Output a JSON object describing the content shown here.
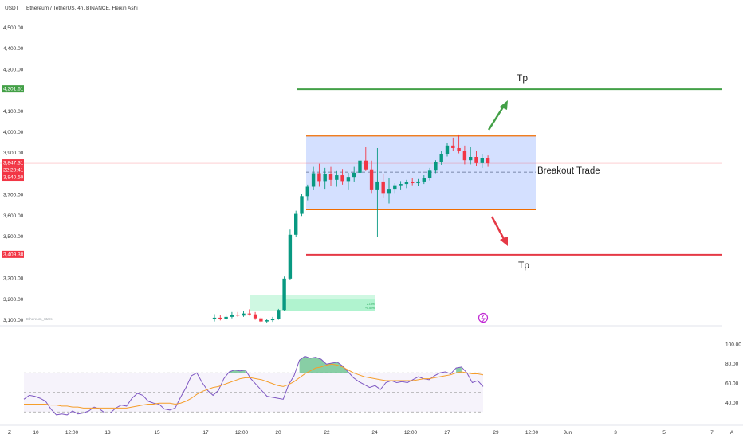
{
  "header": {
    "currency": "USDT",
    "title": "Ethereum / TetherUS, 4h, BINANCE, Heikin Ashi"
  },
  "watermark": "Ethereum_Stars",
  "annotations": {
    "breakout_label": "Breakout Trade",
    "tp_upper": "Tp",
    "tp_lower": "Tp",
    "box_note_line1": "2.15%",
    "box_note_line2": "+0.50%"
  },
  "price_tags": {
    "upper_target": "4,201.61",
    "current_price": "3,847.31",
    "countdown": "22:28:41",
    "prev_price": "3,840.50",
    "lower_target": "3,409.38"
  },
  "x_ticks": [
    "Z",
    "10",
    "12:00",
    "13",
    "15",
    "17",
    "12:00",
    "20",
    "22",
    "24",
    "12:00",
    "27",
    "29",
    "12:00",
    "Jun",
    "3",
    "5",
    "7",
    "A"
  ],
  "chart_data": [
    {
      "type": "candlestick",
      "title": "Ethereum / TetherUS, 4h, BINANCE, Heikin Ashi",
      "y_ticks": [
        "4,500.00",
        "4,400.00",
        "4,300.00",
        "4,100.00",
        "4,000.00",
        "3,900.00",
        "3,700.00",
        "3,600.00",
        "3,500.00",
        "3,300.00",
        "3,200.00",
        "3,100.00"
      ],
      "ylim": [
        3080,
        4560
      ],
      "candles": [
        {
          "o": 3100,
          "h": 3125,
          "l": 3090,
          "c": 3108
        },
        {
          "o": 3108,
          "h": 3120,
          "l": 3095,
          "c": 3100
        },
        {
          "o": 3100,
          "h": 3125,
          "l": 3095,
          "c": 3112
        },
        {
          "o": 3112,
          "h": 3135,
          "l": 3105,
          "c": 3122
        },
        {
          "o": 3122,
          "h": 3135,
          "l": 3112,
          "c": 3118
        },
        {
          "o": 3118,
          "h": 3140,
          "l": 3112,
          "c": 3128
        },
        {
          "o": 3128,
          "h": 3148,
          "l": 3118,
          "c": 3124
        },
        {
          "o": 3124,
          "h": 3135,
          "l": 3098,
          "c": 3105
        },
        {
          "o": 3105,
          "h": 3112,
          "l": 3085,
          "c": 3090
        },
        {
          "o": 3090,
          "h": 3102,
          "l": 3082,
          "c": 3096
        },
        {
          "o": 3096,
          "h": 3112,
          "l": 3088,
          "c": 3102
        },
        {
          "o": 3102,
          "h": 3150,
          "l": 3098,
          "c": 3145
        },
        {
          "o": 3145,
          "h": 3305,
          "l": 3140,
          "c": 3295
        },
        {
          "o": 3295,
          "h": 3530,
          "l": 3290,
          "c": 3505
        },
        {
          "o": 3505,
          "h": 3620,
          "l": 3495,
          "c": 3605
        },
        {
          "o": 3605,
          "h": 3700,
          "l": 3595,
          "c": 3690
        },
        {
          "o": 3690,
          "h": 3745,
          "l": 3670,
          "c": 3735
        },
        {
          "o": 3735,
          "h": 3830,
          "l": 3720,
          "c": 3800
        },
        {
          "o": 3800,
          "h": 3845,
          "l": 3735,
          "c": 3762
        },
        {
          "o": 3762,
          "h": 3825,
          "l": 3725,
          "c": 3795
        },
        {
          "o": 3795,
          "h": 3830,
          "l": 3740,
          "c": 3768
        },
        {
          "o": 3768,
          "h": 3810,
          "l": 3735,
          "c": 3790
        },
        {
          "o": 3790,
          "h": 3820,
          "l": 3745,
          "c": 3762
        },
        {
          "o": 3762,
          "h": 3802,
          "l": 3722,
          "c": 3782
        },
        {
          "o": 3782,
          "h": 3830,
          "l": 3760,
          "c": 3802
        },
        {
          "o": 3802,
          "h": 3875,
          "l": 3785,
          "c": 3860
        },
        {
          "o": 3860,
          "h": 3925,
          "l": 3810,
          "c": 3818
        },
        {
          "o": 3818,
          "h": 3860,
          "l": 3705,
          "c": 3722
        },
        {
          "o": 3722,
          "h": 3920,
          "l": 3495,
          "c": 3760
        },
        {
          "o": 3760,
          "h": 3795,
          "l": 3680,
          "c": 3705
        },
        {
          "o": 3705,
          "h": 3775,
          "l": 3655,
          "c": 3725
        },
        {
          "o": 3725,
          "h": 3752,
          "l": 3705,
          "c": 3742
        },
        {
          "o": 3742,
          "h": 3762,
          "l": 3722,
          "c": 3748
        },
        {
          "o": 3748,
          "h": 3768,
          "l": 3728,
          "c": 3758
        },
        {
          "o": 3758,
          "h": 3778,
          "l": 3742,
          "c": 3752
        },
        {
          "o": 3752,
          "h": 3772,
          "l": 3740,
          "c": 3760
        },
        {
          "o": 3760,
          "h": 3790,
          "l": 3748,
          "c": 3778
        },
        {
          "o": 3778,
          "h": 3825,
          "l": 3765,
          "c": 3812
        },
        {
          "o": 3812,
          "h": 3862,
          "l": 3800,
          "c": 3852
        },
        {
          "o": 3852,
          "h": 3905,
          "l": 3840,
          "c": 3892
        },
        {
          "o": 3892,
          "h": 3945,
          "l": 3880,
          "c": 3932
        },
        {
          "o": 3932,
          "h": 3970,
          "l": 3905,
          "c": 3920
        },
        {
          "o": 3920,
          "h": 3985,
          "l": 3895,
          "c": 3908
        },
        {
          "o": 3908,
          "h": 3932,
          "l": 3842,
          "c": 3862
        },
        {
          "o": 3862,
          "h": 3925,
          "l": 3842,
          "c": 3878
        },
        {
          "o": 3878,
          "h": 3908,
          "l": 3832,
          "c": 3848
        },
        {
          "o": 3848,
          "h": 3892,
          "l": 3825,
          "c": 3872
        },
        {
          "o": 3872,
          "h": 3885,
          "l": 3830,
          "c": 3847
        }
      ],
      "levels": {
        "upper_target": 4201.61,
        "box_top": 3978,
        "current": 3847.31,
        "box_mid": 3805,
        "box_bottom": 3625,
        "lower_target": 3409.38,
        "demand_zone_top": 3218,
        "demand_zone_bottom": 3140
      }
    },
    {
      "type": "line",
      "title": "",
      "y_ticks": [
        "100.00",
        "80.00",
        "60.00",
        "40.00"
      ],
      "ylim": [
        20,
        100
      ],
      "bands": [
        30,
        50,
        70
      ],
      "series": [
        {
          "values": [
            43,
            47,
            46,
            44,
            41,
            33,
            27,
            28,
            27,
            31,
            28,
            29,
            31,
            35,
            33,
            29,
            29,
            34,
            37,
            36,
            44,
            49,
            47,
            41,
            39,
            38,
            33,
            32,
            34,
            45,
            55,
            67,
            70,
            60,
            52,
            47,
            52,
            64,
            71,
            73,
            72,
            73,
            64,
            58,
            52,
            46,
            45,
            44,
            43,
            58,
            67,
            83,
            87,
            85,
            86,
            84,
            79,
            80,
            81,
            77,
            71,
            65,
            61,
            58,
            55,
            57,
            53,
            60,
            62,
            60,
            61,
            60,
            63,
            66,
            64,
            63,
            67,
            70,
            71,
            69,
            75,
            76,
            70,
            60,
            62,
            56
          ]
        },
        {
          "values": [
            38,
            38,
            38,
            38,
            38,
            37,
            37,
            36,
            36,
            35,
            35,
            34,
            34,
            34,
            34,
            34,
            34,
            34,
            34,
            34,
            35,
            36,
            37,
            38,
            38,
            39,
            39,
            39,
            38,
            39,
            41,
            44,
            48,
            51,
            53,
            55,
            56,
            58,
            60,
            62,
            64,
            65,
            65,
            64,
            63,
            61,
            59,
            57,
            56,
            58,
            61,
            65,
            69,
            72,
            75,
            76,
            78,
            79,
            78,
            76,
            73,
            70,
            68,
            66,
            65,
            64,
            63,
            62,
            62,
            62,
            62,
            62,
            62,
            63,
            64,
            64,
            65,
            66,
            67,
            68,
            70,
            71,
            70,
            69,
            69,
            68
          ]
        }
      ]
    }
  ]
}
